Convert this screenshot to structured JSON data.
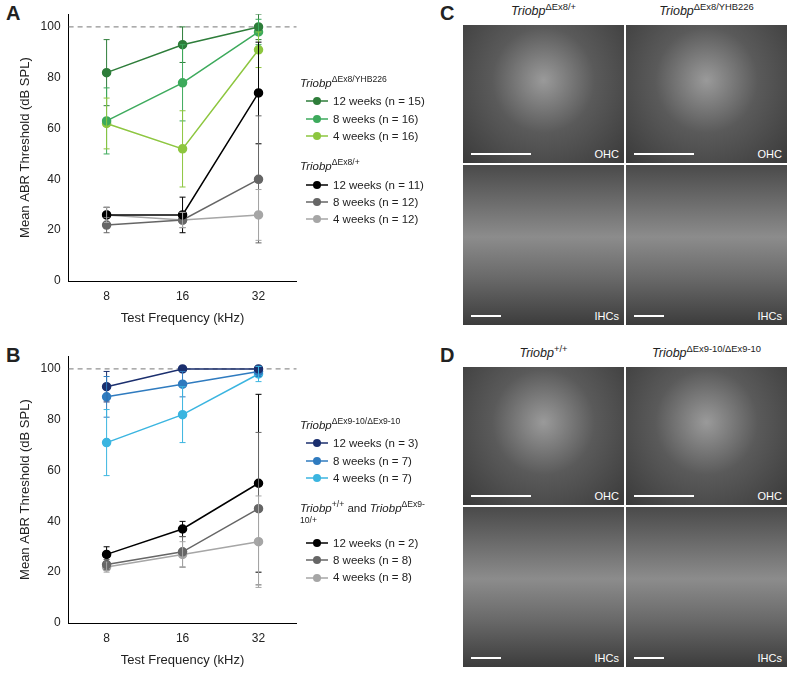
{
  "chart_data": [
    {
      "panel": "A",
      "type": "line",
      "x_label": "Test Frequency (kHz)",
      "y_label": "Mean ABR Threshold (dB SPL)",
      "categories": [
        8,
        16,
        32
      ],
      "ylim": [
        0,
        105
      ],
      "yticks": [
        0,
        20,
        40,
        60,
        80,
        100
      ],
      "grid": false,
      "reference_line": {
        "value": 100,
        "line_style": "dashed"
      },
      "groups": [
        {
          "title": [
            {
              "text": "Triobp",
              "sup": "ΔEx8/YHB226"
            }
          ],
          "series": [
            {
              "name": "12 weeks (n = 15)",
              "color": "#2e7d3a",
              "marker": "circle",
              "values": [
                82,
                93,
                100
              ],
              "errors": [
                13,
                7,
                5
              ]
            },
            {
              "name": "8 weeks (n = 16)",
              "color": "#3daa5c",
              "marker": "circle",
              "values": [
                63,
                78,
                98
              ],
              "errors": [
                13,
                15,
                5
              ]
            },
            {
              "name": "4 weeks (n = 16)",
              "color": "#8dc63f",
              "marker": "circle",
              "values": [
                62,
                52,
                91
              ],
              "errors": [
                10,
                15,
                7
              ]
            }
          ]
        },
        {
          "title": [
            {
              "text": "Triobp",
              "sup": "ΔEx8/+"
            }
          ],
          "series": [
            {
              "name": "12 weeks (n = 11)",
              "color": "#000000",
              "marker": "circle",
              "values": [
                26,
                26,
                74
              ],
              "errors": [
                3,
                7,
                20
              ]
            },
            {
              "name": "8 weeks (n = 12)",
              "color": "#666666",
              "marker": "circle",
              "values": [
                22,
                24,
                40
              ],
              "errors": [
                3,
                3,
                25
              ]
            },
            {
              "name": "4 weeks (n = 12)",
              "color": "#a6a6a6",
              "marker": "circle",
              "values": [
                26,
                24,
                26
              ],
              "errors": [
                3,
                3,
                10
              ]
            }
          ]
        }
      ]
    },
    {
      "panel": "B",
      "type": "line",
      "x_label": "Test Frequency (kHz)",
      "y_label": "Mean ABR Threshold (dB SPL)",
      "categories": [
        8,
        16,
        32
      ],
      "ylim": [
        0,
        105
      ],
      "yticks": [
        0,
        20,
        40,
        60,
        80,
        100
      ],
      "grid": false,
      "reference_line": {
        "value": 100,
        "line_style": "dashed"
      },
      "groups": [
        {
          "title": [
            {
              "text": "Triobp",
              "sup": "ΔEx9-10/ΔEx9-10"
            }
          ],
          "series": [
            {
              "name": "12 weeks (n = 3)",
              "color": "#1b2f6e",
              "marker": "circle",
              "values": [
                93,
                100,
                100
              ],
              "errors": [
                6,
                0,
                0
              ]
            },
            {
              "name": "8 weeks (n = 7)",
              "color": "#2f7bbf",
              "marker": "circle",
              "values": [
                89,
                94,
                99
              ],
              "errors": [
                8,
                5,
                2
              ]
            },
            {
              "name": "4 weeks (n = 7)",
              "color": "#3bb5e0",
              "marker": "circle",
              "values": [
                71,
                82,
                98
              ],
              "errors": [
                13,
                11,
                3
              ]
            }
          ]
        },
        {
          "title": [
            {
              "text": "Triobp",
              "sup": "+/+"
            },
            {
              "text": " and "
            },
            {
              "text": "Triobp",
              "sup": "ΔEx9-10/+"
            }
          ],
          "series": [
            {
              "name": "12 weeks (n = 2)",
              "color": "#000000",
              "marker": "circle",
              "values": [
                27,
                37,
                55
              ],
              "errors": [
                3,
                3,
                35
              ]
            },
            {
              "name": "8 weeks (n = 8)",
              "color": "#666666",
              "marker": "circle",
              "values": [
                23,
                28,
                45
              ],
              "errors": [
                2,
                6,
                30
              ]
            },
            {
              "name": "4 weeks (n = 8)",
              "color": "#a6a6a6",
              "marker": "circle",
              "values": [
                22,
                27,
                32
              ],
              "errors": [
                2,
                5,
                18
              ]
            }
          ]
        }
      ]
    }
  ],
  "images": [
    {
      "panel": "C",
      "columns": [
        [
          {
            "text": "Triobp",
            "sup": "ΔEx8/+"
          }
        ],
        [
          {
            "text": "Triobp",
            "sup": "ΔEx8/YHB226"
          }
        ]
      ],
      "tiles": [
        [
          "OHC",
          "OHC"
        ],
        [
          "IHCs",
          "IHCs"
        ]
      ]
    },
    {
      "panel": "D",
      "columns": [
        [
          {
            "text": "Triobp",
            "sup": "+/+"
          }
        ],
        [
          {
            "text": "Triobp",
            "sup": "ΔEx9-10/ΔEx9-10"
          }
        ]
      ],
      "tiles": [
        [
          "OHC",
          "OHC"
        ],
        [
          "IHCs",
          "IHCs"
        ]
      ]
    }
  ]
}
